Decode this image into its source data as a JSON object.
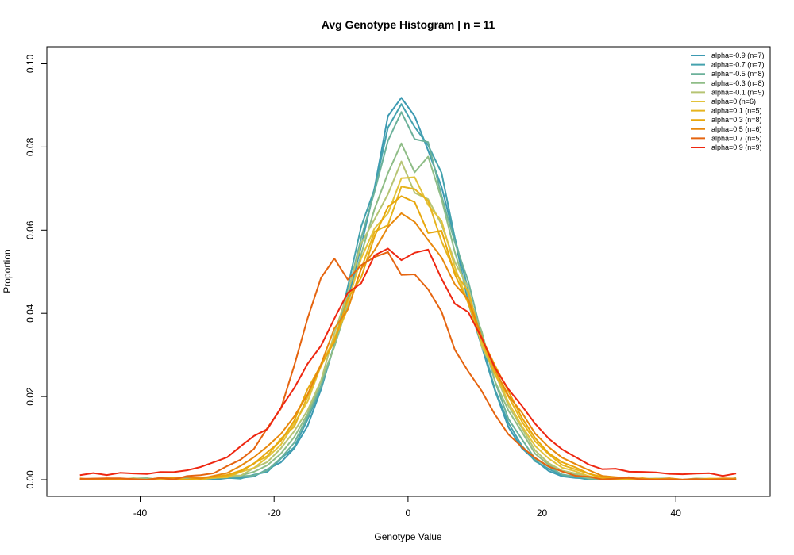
{
  "chart_data": {
    "type": "line",
    "title": "Avg Genotype Histogram | n = 11",
    "xlabel": "Genotype Value",
    "ylabel": "Proportion",
    "xlim": [
      -50,
      50
    ],
    "ylim": [
      -0.004,
      0.104
    ],
    "x_ticks": [
      "-40",
      "-20",
      "0",
      "20",
      "40"
    ],
    "y_ticks": [
      "0.00",
      "0.02",
      "0.04",
      "0.06",
      "0.08",
      "0.10"
    ],
    "legend_position": "top-right",
    "grid": false,
    "series": [
      {
        "name": "alpha=-0.9 (n=7)",
        "color": "#3C9AB2",
        "shape": "normal",
        "sigma": 7.7,
        "amp": 0.0888
      },
      {
        "name": "alpha=-0.7 (n=7)",
        "color": "#44A2AE",
        "shape": "normal",
        "sigma": 7.85,
        "amp": 0.0872
      },
      {
        "name": "alpha=-0.5 (n=8)",
        "color": "#6BB19A",
        "shape": "normal",
        "sigma": 8.0,
        "amp": 0.0852
      },
      {
        "name": "alpha=-0.3 (n=8)",
        "color": "#8FBD87",
        "shape": "normal",
        "sigma": 8.5,
        "amp": 0.0778
      },
      {
        "name": "alpha=-0.1 (n=9)",
        "color": "#B6C473",
        "shape": "normal",
        "sigma": 8.8,
        "amp": 0.0735
      },
      {
        "name": "alpha=0 (n=6)",
        "color": "#E2C23A",
        "shape": "normal",
        "sigma": 9.2,
        "amp": 0.0695
      },
      {
        "name": "alpha=0.1 (n=5)",
        "color": "#E6B41E",
        "shape": "normal",
        "sigma": 9.5,
        "amp": 0.0675
      },
      {
        "name": "alpha=0.3 (n=8)",
        "color": "#E8A70C",
        "shape": "normal",
        "sigma": 9.8,
        "amp": 0.0652
      },
      {
        "name": "alpha=0.5 (n=6)",
        "color": "#E8880C",
        "shape": "normal",
        "sigma": 10.3,
        "amp": 0.0612
      },
      {
        "name": "alpha=0.7 (n=5)",
        "color": "#E5640F",
        "shape": "bimodal"
      },
      {
        "name": "alpha=0.9 (n=9)",
        "color": "#EE2711",
        "shape": "wide"
      }
    ]
  }
}
